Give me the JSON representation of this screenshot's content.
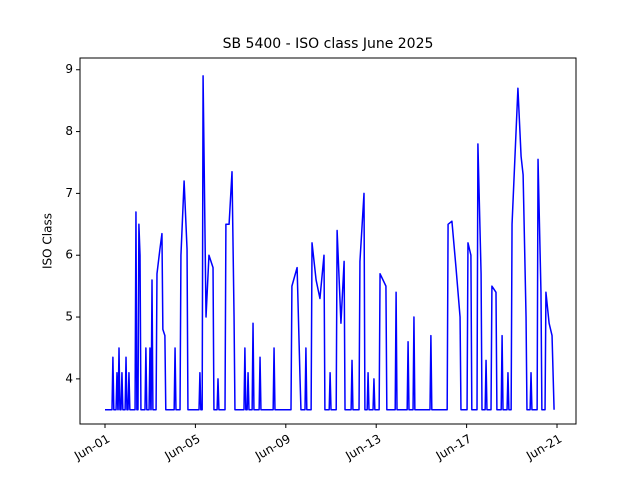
{
  "chart_data": {
    "type": "line",
    "title": "SB 5400 - ISO class June 2025",
    "y_label": "ISO Class",
    "x": [
      1.0,
      1.31,
      1.35,
      1.39,
      1.49,
      1.53,
      1.57,
      1.58,
      1.62,
      1.66,
      1.71,
      1.75,
      1.79,
      1.89,
      1.93,
      1.97,
      2.02,
      2.06,
      2.1,
      2.33,
      2.37,
      2.41,
      2.46,
      2.5,
      2.55,
      2.59,
      2.77,
      2.81,
      2.85,
      2.95,
      2.99,
      3.03,
      3.04,
      3.08,
      3.12,
      3.26,
      3.3,
      3.43,
      3.52,
      3.56,
      3.65,
      3.69,
      4.06,
      4.1,
      4.14,
      4.32,
      4.36,
      4.5,
      4.63,
      4.67,
      5.16,
      5.2,
      5.24,
      5.3,
      5.34,
      5.47,
      5.6,
      5.78,
      5.82,
      5.96,
      6.0,
      6.04,
      6.31,
      6.35,
      6.49,
      6.62,
      6.71,
      6.75,
      7.15,
      7.19,
      7.23,
      7.29,
      7.33,
      7.37,
      7.51,
      7.55,
      7.59,
      7.82,
      7.86,
      7.9,
      8.44,
      8.48,
      8.52,
      9.23,
      9.27,
      9.5,
      9.63,
      9.67,
      9.85,
      9.89,
      9.93,
      10.12,
      10.16,
      10.34,
      10.51,
      10.69,
      10.73,
      10.92,
      10.96,
      11.0,
      11.23,
      11.27,
      11.44,
      11.58,
      11.62,
      11.89,
      11.93,
      11.97,
      12.24,
      12.28,
      12.46,
      12.5,
      12.6,
      12.64,
      12.68,
      12.86,
      12.9,
      12.94,
      13.13,
      13.17,
      13.43,
      13.47,
      13.84,
      13.88,
      13.92,
      14.37,
      14.41,
      14.45,
      14.63,
      14.67,
      14.71,
      15.38,
      15.42,
      15.46,
      16.14,
      16.18,
      16.35,
      16.53,
      16.71,
      16.75,
      17.02,
      17.06,
      17.19,
      17.23,
      17.46,
      17.5,
      17.64,
      17.68,
      17.82,
      17.86,
      17.9,
      18.08,
      18.12,
      18.3,
      18.34,
      18.53,
      18.57,
      18.61,
      18.79,
      18.83,
      18.87,
      18.97,
      19.01,
      19.27,
      19.41,
      19.5,
      19.63,
      19.67,
      19.81,
      19.85,
      19.89,
      20.12,
      20.16,
      20.29,
      20.33,
      20.47,
      20.51,
      20.65,
      20.78,
      20.87
    ],
    "series": [
      {
        "name": "ISO Class",
        "color": "#0000ff",
        "values": [
          3.5,
          3.5,
          4.35,
          3.5,
          3.5,
          4.1,
          3.5,
          3.5,
          4.5,
          3.5,
          3.5,
          4.1,
          3.5,
          3.5,
          4.35,
          3.5,
          3.5,
          4.1,
          3.5,
          3.5,
          6.7,
          3.5,
          3.5,
          6.5,
          6.0,
          3.5,
          3.5,
          4.5,
          3.5,
          3.5,
          4.5,
          3.5,
          3.5,
          5.6,
          3.5,
          3.5,
          5.7,
          6.1,
          6.35,
          4.8,
          4.7,
          3.5,
          3.5,
          4.5,
          3.5,
          3.5,
          6.0,
          7.2,
          6.1,
          3.5,
          3.5,
          4.1,
          3.5,
          3.5,
          8.9,
          5.0,
          6.0,
          5.8,
          3.5,
          3.5,
          4.0,
          3.5,
          3.5,
          6.5,
          6.5,
          7.35,
          5.0,
          3.5,
          3.5,
          4.5,
          3.5,
          3.5,
          4.1,
          3.5,
          3.5,
          4.9,
          3.5,
          3.5,
          4.35,
          3.5,
          3.5,
          4.5,
          3.5,
          3.5,
          5.5,
          5.8,
          4.0,
          3.5,
          3.5,
          4.5,
          3.5,
          3.5,
          6.2,
          5.6,
          5.3,
          6.0,
          3.5,
          3.5,
          4.1,
          3.5,
          3.5,
          6.4,
          4.9,
          5.9,
          3.5,
          3.5,
          4.3,
          3.5,
          3.5,
          5.9,
          7.0,
          3.5,
          3.5,
          4.1,
          3.5,
          3.5,
          4.0,
          3.5,
          3.5,
          5.7,
          5.5,
          3.5,
          3.5,
          5.4,
          3.5,
          3.5,
          4.6,
          3.5,
          3.5,
          5.0,
          3.5,
          3.5,
          4.7,
          3.5,
          3.5,
          6.5,
          6.55,
          5.8,
          5.0,
          3.5,
          3.5,
          6.2,
          6.0,
          3.5,
          3.5,
          7.8,
          5.7,
          3.5,
          3.5,
          4.3,
          3.5,
          3.5,
          5.5,
          5.4,
          3.5,
          3.5,
          4.7,
          3.5,
          3.5,
          4.1,
          3.5,
          3.5,
          6.5,
          8.7,
          7.6,
          7.3,
          5.0,
          3.5,
          3.5,
          4.1,
          3.5,
          3.5,
          7.55,
          5.4,
          3.5,
          3.5,
          5.4,
          4.9,
          4.7,
          3.5
        ]
      }
    ],
    "xlim": [
      -0.106,
      21.84
    ],
    "xticks": [
      {
        "value": 1,
        "label": "Jun-01"
      },
      {
        "value": 5,
        "label": "Jun-05"
      },
      {
        "value": 9,
        "label": "Jun-09"
      },
      {
        "value": 13,
        "label": "Jun-13"
      },
      {
        "value": 17,
        "label": "Jun-17"
      },
      {
        "value": 21,
        "label": "Jun-21"
      }
    ],
    "ylim": [
      3.27,
      9.19
    ],
    "yticks": [
      4,
      5,
      6,
      7,
      8,
      9
    ],
    "grid": false
  }
}
